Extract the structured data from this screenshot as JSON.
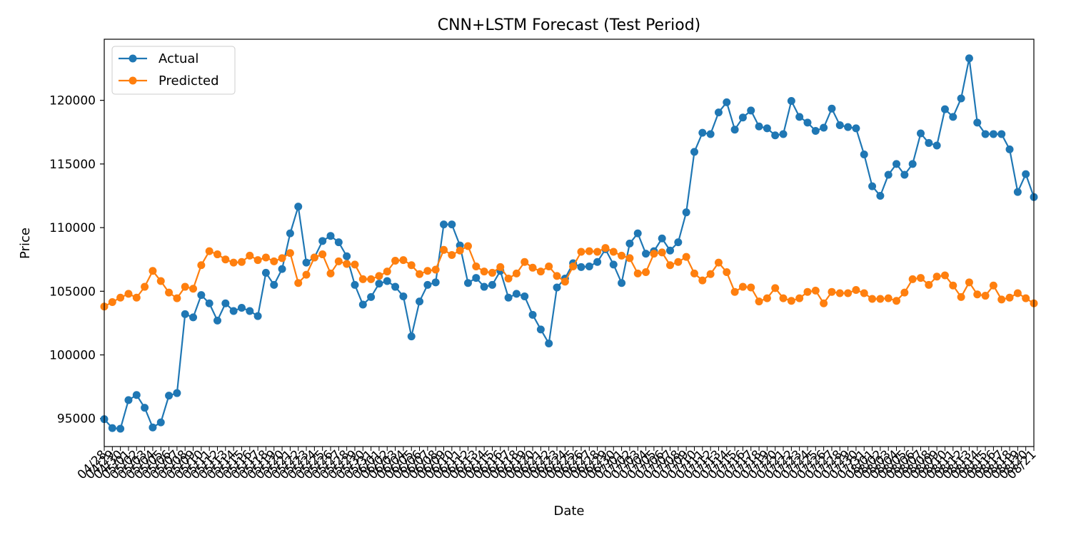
{
  "chart_data": {
    "type": "line",
    "title": "CNN+LSTM Forecast (Test Period)",
    "xlabel": "Date",
    "ylabel": "Price",
    "ylim": [
      92800,
      124800
    ],
    "yticks": [
      95000,
      100000,
      105000,
      110000,
      115000,
      120000
    ],
    "grid": false,
    "legend_position": "top-left",
    "x": [
      "04/28",
      "04/29",
      "04/30",
      "05/01",
      "05/02",
      "05/03",
      "05/04",
      "05/05",
      "05/06",
      "05/07",
      "05/08",
      "05/09",
      "05/10",
      "05/11",
      "05/12",
      "05/13",
      "05/14",
      "05/15",
      "05/16",
      "05/17",
      "05/18",
      "05/19",
      "05/20",
      "05/21",
      "05/22",
      "05/23",
      "05/24",
      "05/25",
      "05/26",
      "05/27",
      "05/28",
      "05/29",
      "05/30",
      "05/31",
      "06/01",
      "06/02",
      "06/03",
      "06/04",
      "06/05",
      "06/06",
      "06/07",
      "06/08",
      "06/09",
      "06/10",
      "06/11",
      "06/12",
      "06/13",
      "06/14",
      "06/15",
      "06/16",
      "06/17",
      "06/18",
      "06/19",
      "06/20",
      "06/21",
      "06/22",
      "06/23",
      "06/24",
      "06/25",
      "06/26",
      "06/27",
      "06/28",
      "06/29",
      "06/30",
      "07/01",
      "07/02",
      "07/03",
      "07/04",
      "07/05",
      "07/06",
      "07/07",
      "07/08",
      "07/09",
      "07/10",
      "07/11",
      "07/12",
      "07/13",
      "07/14",
      "07/15",
      "07/16",
      "07/17",
      "07/18",
      "07/19",
      "07/20",
      "07/21",
      "07/22",
      "07/23",
      "07/24",
      "07/25",
      "07/26",
      "07/27",
      "07/28",
      "07/29",
      "07/30",
      "07/31",
      "08/01",
      "08/02",
      "08/03",
      "08/04",
      "08/05",
      "08/06",
      "08/07",
      "08/08",
      "08/09",
      "08/10",
      "08/11",
      "08/12",
      "08/13",
      "08/14",
      "08/15",
      "08/16",
      "08/17",
      "08/18",
      "08/19",
      "08/20",
      "08/21"
    ],
    "series": [
      {
        "name": "Actual",
        "color": "#1f77b4",
        "values": [
          94950,
          94250,
          94200,
          96450,
          96850,
          95850,
          94300,
          94700,
          96800,
          97000,
          103200,
          102950,
          104700,
          104050,
          102700,
          104050,
          103450,
          103700,
          103450,
          103050,
          106450,
          105500,
          106750,
          109550,
          111650,
          107250,
          107650,
          108950,
          109350,
          108850,
          107750,
          105500,
          103950,
          104550,
          105600,
          105800,
          105350,
          104600,
          101450,
          104200,
          105500,
          105700,
          110250,
          110250,
          108600,
          105650,
          106050,
          105350,
          105500,
          106600,
          104500,
          104800,
          104600,
          103150,
          102000,
          100900,
          105300,
          106000,
          107200,
          106900,
          106950,
          107300,
          108300,
          107100,
          105650,
          108750,
          109550,
          107950,
          108150,
          109150,
          108200,
          108850,
          111200,
          115950,
          117450,
          117350,
          119050,
          119850,
          117700,
          118650,
          119200,
          117950,
          117800,
          117250,
          117350,
          119950,
          118700,
          118250,
          117600,
          117850,
          119350,
          118050,
          117900,
          117800,
          115750,
          113250,
          112500,
          114150,
          115000,
          114150,
          115000,
          117400,
          116650,
          116450,
          119300,
          118700,
          120150,
          123300,
          118250,
          117350,
          117350,
          117350,
          116150,
          112800,
          114200,
          112400
        ]
      },
      {
        "name": "Predicted",
        "color": "#ff7f0e",
        "values": [
          103800,
          104150,
          104500,
          104800,
          104500,
          105350,
          106600,
          105800,
          104900,
          104450,
          105350,
          105200,
          107050,
          108150,
          107900,
          107500,
          107250,
          107300,
          107800,
          107450,
          107650,
          107350,
          107600,
          108000,
          105650,
          106300,
          107650,
          107900,
          106400,
          107350,
          107150,
          107100,
          105950,
          105950,
          106200,
          106550,
          107400,
          107450,
          107050,
          106350,
          106600,
          106700,
          108250,
          107850,
          108200,
          108550,
          106950,
          106550,
          106450,
          106900,
          106000,
          106400,
          107300,
          106850,
          106550,
          106950,
          106200,
          105750,
          106950,
          108100,
          108150,
          108100,
          108400,
          108100,
          107800,
          107600,
          106400,
          106500,
          107950,
          108050,
          107050,
          107300,
          107700,
          106400,
          105850,
          106350,
          107250,
          106500,
          104950,
          105350,
          105300,
          104200,
          104450,
          105250,
          104450,
          104250,
          104450,
          104950,
          105050,
          104050,
          104950,
          104850,
          104850,
          105100,
          104850,
          104400,
          104400,
          104450,
          104250,
          104900,
          105950,
          106050,
          105500,
          106150,
          106250,
          105450,
          104550,
          105700,
          104750,
          104650,
          105450,
          104350,
          104500,
          104850,
          104450,
          104050
        ]
      }
    ]
  }
}
